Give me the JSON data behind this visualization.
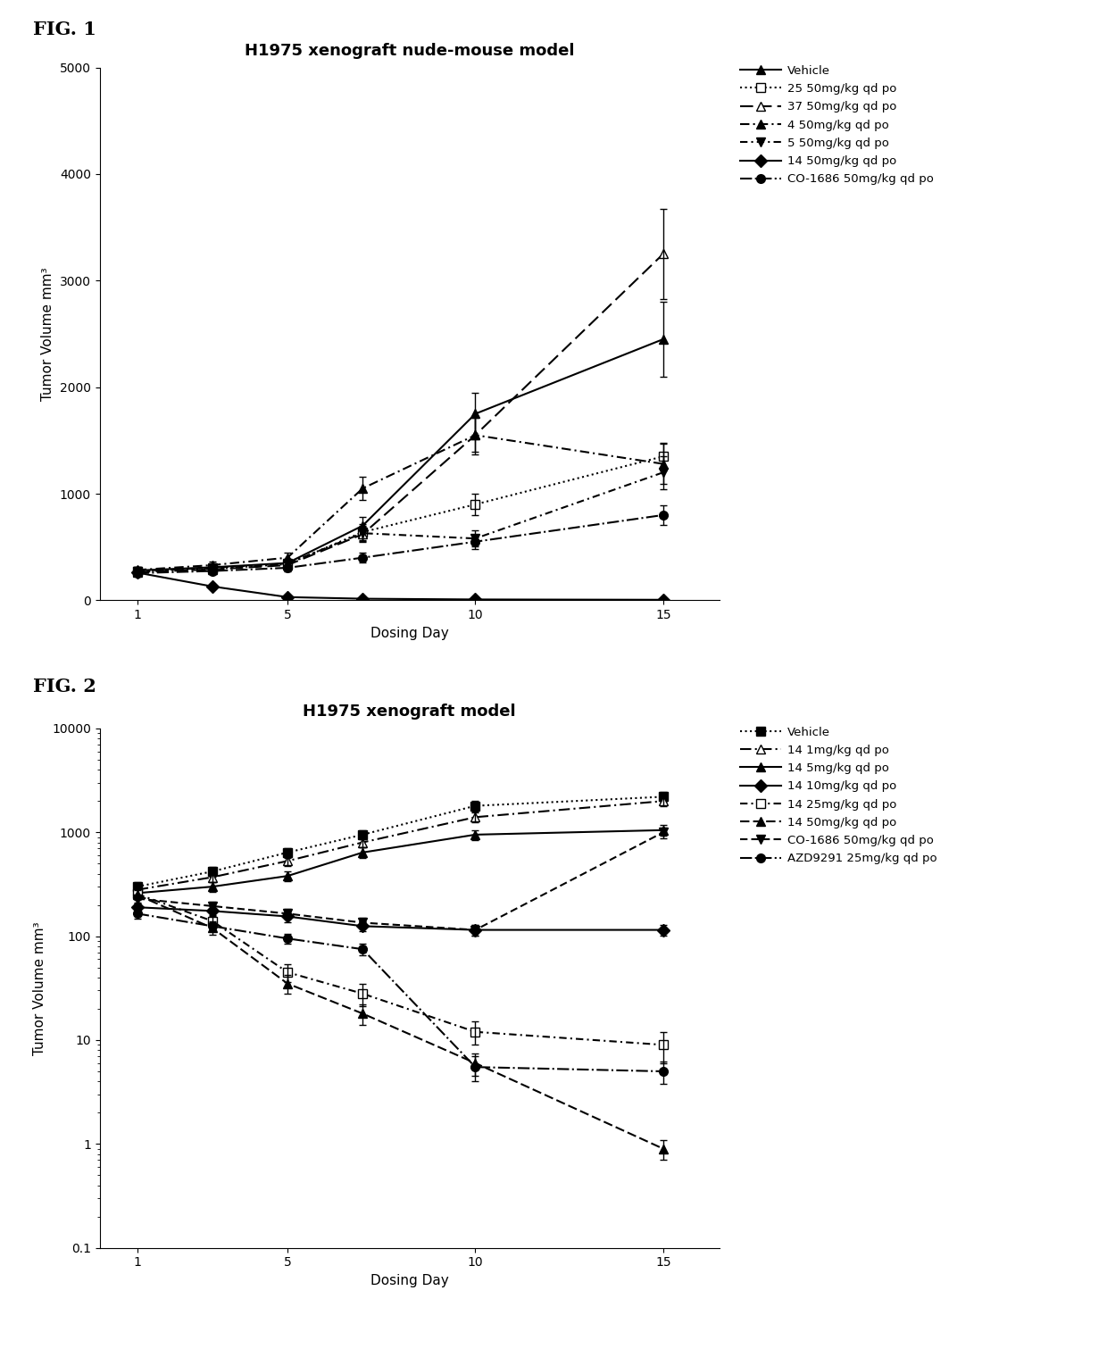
{
  "fig1": {
    "title": "H1975 xenograft nude-mouse model",
    "xlabel": "Dosing Day",
    "ylabel": "Tumor Volume mm³",
    "x": [
      1,
      3,
      5,
      7,
      10,
      15
    ],
    "series": [
      {
        "label": "Vehicle",
        "y": [
          280,
          310,
          350,
          700,
          1750,
          2450
        ],
        "yerr": [
          30,
          35,
          40,
          80,
          200,
          350
        ]
      },
      {
        "label": "25 50mg/kg qd po",
        "y": [
          270,
          295,
          340,
          640,
          900,
          1350
        ],
        "yerr": [
          28,
          32,
          38,
          75,
          100,
          130
        ]
      },
      {
        "label": "37 50mg/kg qd po",
        "y": [
          265,
          290,
          330,
          620,
          1550,
          3250
        ],
        "yerr": [
          27,
          30,
          35,
          70,
          160,
          420
        ]
      },
      {
        "label": "4 50mg/kg qd po",
        "y": [
          285,
          330,
          400,
          1050,
          1550,
          1280
        ],
        "yerr": [
          29,
          36,
          44,
          110,
          180,
          190
        ]
      },
      {
        "label": "5 50mg/kg qd po",
        "y": [
          275,
          305,
          345,
          630,
          580,
          1200
        ],
        "yerr": [
          28,
          33,
          40,
          72,
          75,
          155
        ]
      },
      {
        "label": "14 50mg/kg qd po",
        "y": [
          260,
          130,
          30,
          15,
          8,
          5
        ],
        "yerr": [
          26,
          18,
          8,
          4,
          2,
          1
        ]
      },
      {
        "label": "CO-1686 50mg/kg qd po",
        "y": [
          255,
          275,
          305,
          400,
          550,
          800
        ],
        "yerr": [
          26,
          30,
          33,
          48,
          65,
          95
        ]
      }
    ],
    "ylim": [
      0,
      5000
    ],
    "yticks": [
      0,
      1000,
      2000,
      3000,
      4000,
      5000
    ],
    "xticks": [
      1,
      5,
      10,
      15
    ],
    "xlim": [
      0,
      16.5
    ]
  },
  "fig2": {
    "title": "H1975 xenograft model",
    "xlabel": "Dosing Day",
    "ylabel": "Tumor Volume mm³",
    "x": [
      1,
      3,
      5,
      7,
      10,
      15
    ],
    "series": [
      {
        "label": "Vehicle",
        "y": [
          300,
          420,
          640,
          950,
          1800,
          2200
        ],
        "yerr": [
          30,
          46,
          70,
          100,
          200,
          240
        ]
      },
      {
        "label": "14 1mg/kg qd po",
        "y": [
          280,
          370,
          530,
          800,
          1400,
          2000
        ],
        "yerr": [
          28,
          40,
          57,
          88,
          155,
          220
        ]
      },
      {
        "label": "14 5mg/kg qd po",
        "y": [
          260,
          300,
          380,
          640,
          950,
          1050
        ],
        "yerr": [
          27,
          33,
          42,
          72,
          105,
          120
        ]
      },
      {
        "label": "14 10mg/kg qd po",
        "y": [
          190,
          175,
          155,
          125,
          115,
          115
        ],
        "yerr": [
          21,
          20,
          18,
          14,
          13,
          13
        ]
      },
      {
        "label": "14 25mg/kg qd po",
        "y": [
          255,
          140,
          45,
          28,
          12,
          9
        ],
        "yerr": [
          27,
          19,
          9,
          7,
          3,
          3
        ]
      },
      {
        "label": "14 50mg/kg qd po",
        "y": [
          250,
          120,
          35,
          18,
          6,
          0.9
        ],
        "yerr": [
          26,
          16,
          7,
          4,
          1.5,
          0.2
        ]
      },
      {
        "label": "CO-1686 50mg/kg qd po",
        "y": [
          230,
          195,
          165,
          135,
          115,
          1000
        ],
        "yerr": [
          24,
          21,
          18,
          15,
          13,
          120
        ]
      },
      {
        "label": "AZD9291 25mg/kg qd po",
        "y": [
          165,
          125,
          95,
          75,
          5.5,
          5.0
        ],
        "yerr": [
          18,
          14,
          11,
          9,
          1.5,
          1.2
        ]
      }
    ],
    "ylim_log": [
      0.1,
      10000
    ],
    "yticks_log": [
      0.1,
      1,
      10,
      100,
      1000,
      10000
    ],
    "xticks": [
      1,
      5,
      10,
      15
    ],
    "xlim": [
      0,
      16.5
    ]
  },
  "fig_label_fontsize": 15,
  "title_fontsize": 13,
  "axis_fontsize": 11,
  "tick_fontsize": 10,
  "legend_fontsize": 9.5,
  "fig1_linestyles": [
    {
      "ls": "-",
      "dashes": null,
      "marker": "^",
      "mfc": "#000000",
      "mec": "#000000"
    },
    {
      "ls": ":",
      "dashes": null,
      "marker": "s",
      "mfc": "white",
      "mec": "#000000"
    },
    {
      "ls": "--",
      "dashes": [
        7,
        3
      ],
      "marker": "^",
      "mfc": "white",
      "mec": "#000000"
    },
    {
      "ls": "--",
      "dashes": [
        5,
        2,
        1,
        2
      ],
      "marker": "^",
      "mfc": "#000000",
      "mec": "#000000"
    },
    {
      "ls": "--",
      "dashes": [
        4,
        2,
        1,
        2
      ],
      "marker": "v",
      "mfc": "#000000",
      "mec": "#000000"
    },
    {
      "ls": "-",
      "dashes": null,
      "marker": "D",
      "mfc": "#000000",
      "mec": "#000000"
    },
    {
      "ls": "-.",
      "dashes": null,
      "marker": "o",
      "mfc": "#000000",
      "mec": "#000000"
    }
  ],
  "fig2_linestyles": [
    {
      "ls": ":",
      "dashes": null,
      "marker": "s",
      "mfc": "#000000",
      "mec": "#000000"
    },
    {
      "ls": "--",
      "dashes": [
        6,
        2,
        1,
        2
      ],
      "marker": "^",
      "mfc": "white",
      "mec": "#000000"
    },
    {
      "ls": "-",
      "dashes": null,
      "marker": "^",
      "mfc": "#000000",
      "mec": "#000000"
    },
    {
      "ls": "-",
      "dashes": null,
      "marker": "D",
      "mfc": "#000000",
      "mec": "#000000"
    },
    {
      "ls": "--",
      "dashes": [
        4,
        2,
        1,
        2
      ],
      "marker": "s",
      "mfc": "white",
      "mec": "#000000"
    },
    {
      "ls": "--",
      "dashes": [
        5,
        2
      ],
      "marker": "^",
      "mfc": "#000000",
      "mec": "#000000"
    },
    {
      "ls": "--",
      "dashes": [
        4,
        2
      ],
      "marker": "v",
      "mfc": "#000000",
      "mec": "#000000"
    },
    {
      "ls": "-.",
      "dashes": null,
      "marker": "o",
      "mfc": "#000000",
      "mec": "#000000"
    }
  ]
}
